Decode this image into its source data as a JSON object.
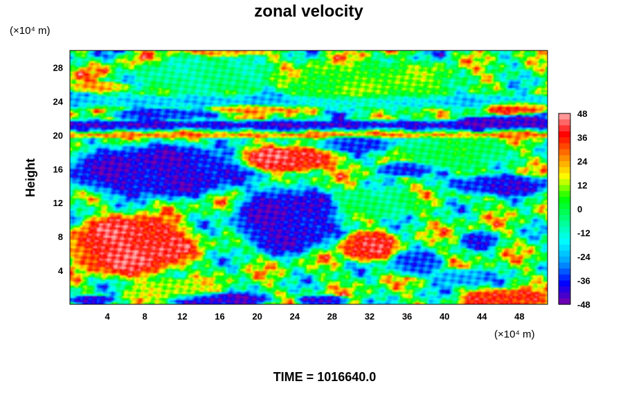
{
  "chart_data": {
    "type": "heatmap",
    "title": "zonal velocity",
    "xlabel": "",
    "ylabel": "Height",
    "x_unit": "(×10⁴ m)",
    "y_unit": "(×10⁴ m)",
    "xlim": [
      0,
      51
    ],
    "ylim": [
      0,
      30
    ],
    "x_ticks": [
      4,
      8,
      12,
      16,
      20,
      24,
      28,
      32,
      36,
      40,
      44,
      48
    ],
    "y_ticks": [
      4,
      8,
      12,
      16,
      20,
      24,
      28
    ],
    "colorbar": {
      "range": [
        -48,
        48
      ],
      "ticks": [
        48,
        36,
        24,
        12,
        0,
        -12,
        -24,
        -36,
        -48
      ],
      "colors": [
        "#7c00a6",
        "#0000ff",
        "#00a0ff",
        "#00ffff",
        "#00ff80",
        "#00ff00",
        "#ffff00",
        "#ff8000",
        "#ff0000",
        "#ffb0b0"
      ]
    },
    "features": [
      {
        "x": 6.5,
        "y": 6.9,
        "rx": 5.8,
        "ry": 3.2,
        "value": 48
      },
      {
        "x": 23.2,
        "y": 17.1,
        "rx": 4.6,
        "ry": 1.3,
        "value": 48
      },
      {
        "x": 31.8,
        "y": 6.9,
        "rx": 2.6,
        "ry": 1.6,
        "value": 44
      },
      {
        "x": 46.5,
        "y": 0.6,
        "rx": 4.2,
        "ry": 1.1,
        "value": 40
      },
      {
        "x": 48.0,
        "y": 23.3,
        "rx": 3.3,
        "ry": 0.7,
        "value": 42
      },
      {
        "x": 19.2,
        "y": 23.1,
        "rx": 4.2,
        "ry": 0.5,
        "value": 30
      },
      {
        "x": 3.0,
        "y": 25.7,
        "rx": 3.0,
        "ry": 0.6,
        "value": 28
      },
      {
        "x": 16.5,
        "y": 30.0,
        "rx": 4.0,
        "ry": 0.6,
        "value": 28
      },
      {
        "x": 11.0,
        "y": 1.8,
        "rx": 4.5,
        "ry": 1.2,
        "value": 14
      },
      {
        "x": 9.0,
        "y": 15.8,
        "rx": 9.0,
        "ry": 2.8,
        "value": -48
      },
      {
        "x": 23.0,
        "y": 10.0,
        "rx": 5.0,
        "ry": 3.6,
        "value": -48
      },
      {
        "x": 46.0,
        "y": 14.1,
        "rx": 5.0,
        "ry": 1.1,
        "value": -46
      },
      {
        "x": 46.5,
        "y": 21.6,
        "rx": 5.0,
        "ry": 0.6,
        "value": -48
      },
      {
        "x": 10.0,
        "y": 22.5,
        "rx": 5.0,
        "ry": 0.6,
        "value": -40
      },
      {
        "x": 16.0,
        "y": 0.6,
        "rx": 5.0,
        "ry": 0.7,
        "value": -48
      },
      {
        "x": 2.2,
        "y": 0.5,
        "rx": 2.2,
        "ry": 0.5,
        "value": -48
      },
      {
        "x": 27.0,
        "y": 0.5,
        "rx": 2.5,
        "ry": 0.5,
        "value": -48
      },
      {
        "x": 35.8,
        "y": 16.0,
        "rx": 2.5,
        "ry": 0.8,
        "value": -44
      },
      {
        "x": 43.7,
        "y": 7.5,
        "rx": 1.8,
        "ry": 1.0,
        "value": -40
      },
      {
        "x": 37.0,
        "y": 4.8,
        "rx": 2.6,
        "ry": 1.3,
        "value": -36
      },
      {
        "x": 42.0,
        "y": 3.2,
        "rx": 3.0,
        "ry": 0.9,
        "value": -30
      },
      {
        "x": 30.5,
        "y": 19.0,
        "rx": 3.8,
        "ry": 0.9,
        "value": -38
      },
      {
        "x": 33.0,
        "y": 12.0,
        "rx": 4.0,
        "ry": 1.6,
        "value": -6
      },
      {
        "x": 41.0,
        "y": 18.0,
        "rx": 5.5,
        "ry": 1.8,
        "value": -2
      },
      {
        "x": 32.0,
        "y": 26.0,
        "rx": 8.0,
        "ry": 2.5,
        "value": 8
      },
      {
        "x": 14.0,
        "y": 27.0,
        "rx": 7.0,
        "ry": 2.0,
        "value": -8
      }
    ],
    "bands": [
      {
        "y": 21.2,
        "half_width": 0.35,
        "value": -46
      },
      {
        "y": 20.0,
        "half_width": 0.2,
        "value": 30
      },
      {
        "y": 24.0,
        "half_width": 0.5,
        "value": -24
      }
    ]
  },
  "footer": {
    "time_label": "TIME = 1016640.0"
  }
}
